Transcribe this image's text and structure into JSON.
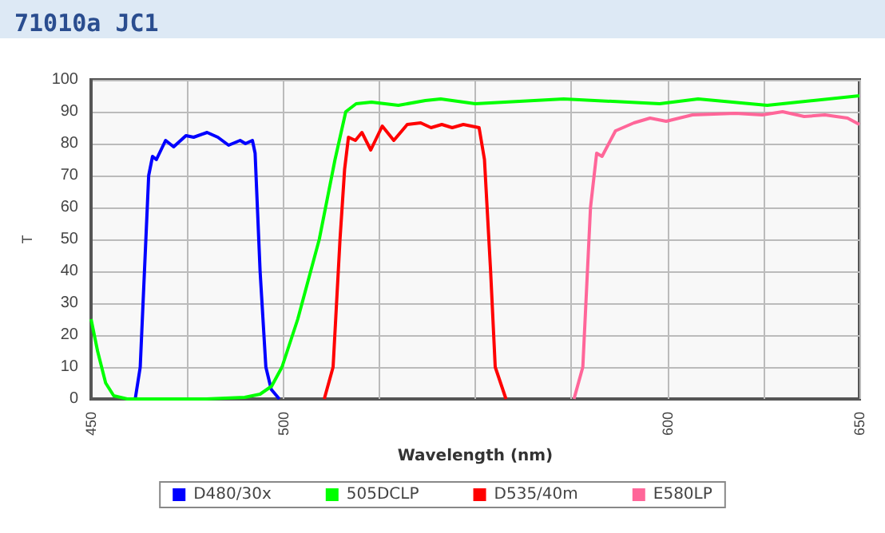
{
  "chart_data": {
    "type": "line",
    "title": "71010a JC1",
    "xlabel": "Wavelength (nm)",
    "ylabel": "T",
    "xlim": [
      450,
      650
    ],
    "xticks": [
      450,
      {
        "value": 475,
        "label": null
      },
      500,
      {
        "value": 525,
        "label": null
      },
      {
        "value": 550,
        "label": null
      },
      {
        "value": 575,
        "label": null
      },
      600,
      {
        "value": 625,
        "label": null
      },
      650
    ],
    "ylim": [
      0,
      100
    ],
    "yticks": [
      0,
      10,
      20,
      30,
      40,
      50,
      60,
      70,
      80,
      90,
      100
    ],
    "grid": true,
    "legend": "bottom",
    "marker": "none",
    "line_style": "solid",
    "series": [
      {
        "name": "D480/30x",
        "color": "#0000ff",
        "x": [
          461.5,
          462.8,
          465,
          466,
          467,
          469.4,
          471.5,
          474.7,
          476.7,
          480.2,
          483,
          485.8,
          488.8,
          490.2,
          492,
          492.7,
          494,
          495.5,
          496.9,
          499
        ],
        "values": [
          0,
          10,
          70,
          76,
          75,
          81,
          79,
          82.5,
          82,
          83.5,
          82,
          79.5,
          81,
          80,
          81,
          77,
          40,
          10,
          3,
          0
        ]
      },
      {
        "name": "505DCLP",
        "color": "#00ff00",
        "x": [
          450,
          451.7,
          453.8,
          455.9,
          459.4,
          480,
          490,
          494,
          497,
          499.7,
          503.8,
          509.4,
          513.5,
          516.3,
          519,
          523,
          530,
          537,
          541,
          550,
          573,
          598,
          608,
          626,
          650
        ],
        "values": [
          25,
          15,
          5,
          1,
          0,
          0,
          0.5,
          1.5,
          4,
          10,
          25,
          50,
          75,
          90,
          92.5,
          93,
          92,
          93.5,
          94,
          92.5,
          94,
          92.5,
          94,
          92,
          95
        ]
      },
      {
        "name": "D535/40m",
        "color": "#ff0000",
        "x": [
          510.7,
          513,
          514.8,
          516,
          517,
          518.8,
          520.5,
          522.8,
          525.8,
          528.8,
          532.3,
          535.8,
          538.5,
          541.3,
          544,
          546.9,
          551,
          552.4,
          554,
          555.2,
          558
        ],
        "values": [
          0,
          10,
          50,
          72,
          82,
          81,
          83.5,
          78,
          85.5,
          81,
          86,
          86.5,
          85,
          86,
          85,
          86,
          85,
          75,
          40,
          10,
          0
        ]
      },
      {
        "name": "E580LP",
        "color": "#ff6699",
        "x": [
          575.7,
          578,
          580,
          581.6,
          583,
          586.5,
          591.3,
          595.5,
          599.7,
          606.5,
          617.7,
          624.7,
          630,
          635.6,
          641,
          646.9,
          650
        ],
        "values": [
          0,
          10,
          60,
          77,
          76,
          84,
          86.5,
          88,
          87,
          89,
          89.5,
          89,
          90,
          88.5,
          89,
          88,
          86
        ]
      }
    ]
  }
}
